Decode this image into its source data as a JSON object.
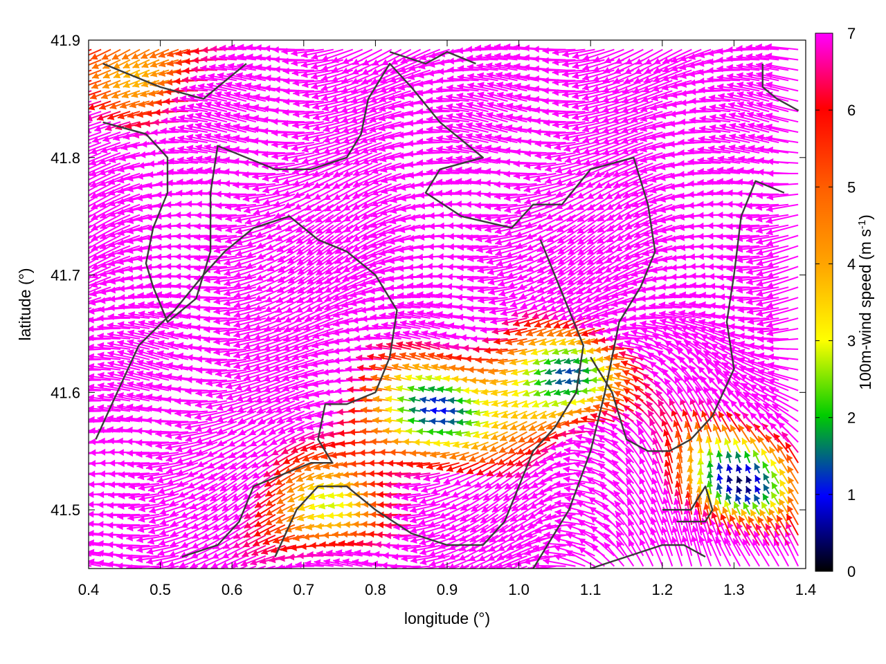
{
  "chart_data": {
    "type": "vector_field",
    "xlabel": "longitude (°)",
    "ylabel": "latitude (°)",
    "xlim": [
      0.4,
      1.4
    ],
    "ylim": [
      41.45,
      41.9
    ],
    "x_ticks": [
      0.4,
      0.5,
      0.6,
      0.7,
      0.8,
      0.9,
      1.0,
      1.1,
      1.2,
      1.3,
      1.4
    ],
    "x_tick_labels": [
      "0.4",
      "0.5",
      "0.6",
      "0.7",
      "0.8",
      "0.9",
      "1.0",
      "1.1",
      "1.2",
      "1.3",
      "1.4"
    ],
    "y_ticks": [
      41.5,
      41.6,
      41.7,
      41.8,
      41.9
    ],
    "y_tick_labels": [
      "41.5",
      "41.6",
      "41.7",
      "41.8",
      "41.9"
    ],
    "colorbar": {
      "label_main": "100m-wind speed (m s",
      "label_sup": "-1",
      "label_end": ")",
      "min": 0,
      "max": 7,
      "ticks": [
        0,
        1,
        2,
        3,
        4,
        5,
        6,
        7
      ],
      "tick_labels": [
        "0",
        "1",
        "2",
        "3",
        "4",
        "5",
        "6",
        "7"
      ],
      "colors": [
        "#000000",
        "#0000ff",
        "#00cc00",
        "#ffff00",
        "#ffa500",
        "#ff0000",
        "#ff00ff"
      ]
    },
    "grid": false,
    "legend": "none",
    "wind_field": {
      "general_direction": "westward (east-to-west flow), veering to northward in the south-east",
      "max_speed": 7,
      "low_speed_regions": [
        {
          "lon": 0.88,
          "lat": 41.58,
          "speed": 1.5
        },
        {
          "lon": 1.06,
          "lat": 41.61,
          "speed": 1.0
        },
        {
          "lon": 1.31,
          "lat": 41.52,
          "speed": 1.2
        },
        {
          "lon": 0.5,
          "lat": 41.88,
          "speed": 3.5
        },
        {
          "lon": 0.73,
          "lat": 41.5,
          "speed": 3.0
        }
      ]
    },
    "contours": [
      [
        [
          0.42,
          41.88
        ],
        [
          0.5,
          41.86
        ],
        [
          0.56,
          41.85
        ],
        [
          0.6,
          41.87
        ],
        [
          0.62,
          41.88
        ]
      ],
      [
        [
          0.42,
          41.83
        ],
        [
          0.48,
          41.82
        ],
        [
          0.51,
          41.8
        ],
        [
          0.51,
          41.77
        ],
        [
          0.49,
          41.74
        ],
        [
          0.48,
          41.71
        ],
        [
          0.49,
          41.69
        ],
        [
          0.51,
          41.66
        ],
        [
          0.55,
          41.68
        ],
        [
          0.57,
          41.72
        ],
        [
          0.57,
          41.77
        ],
        [
          0.58,
          41.81
        ],
        [
          0.62,
          41.8
        ],
        [
          0.66,
          41.79
        ],
        [
          0.71,
          41.79
        ],
        [
          0.76,
          41.8
        ],
        [
          0.78,
          41.82
        ],
        [
          0.79,
          41.85
        ],
        [
          0.82,
          41.88
        ],
        [
          0.85,
          41.86
        ],
        [
          0.89,
          41.83
        ],
        [
          0.93,
          41.81
        ],
        [
          0.95,
          41.8
        ],
        [
          0.89,
          41.79
        ],
        [
          0.87,
          41.77
        ],
        [
          0.92,
          41.75
        ],
        [
          0.99,
          41.74
        ],
        [
          1.02,
          41.76
        ],
        [
          1.06,
          41.76
        ],
        [
          1.1,
          41.79
        ],
        [
          1.16,
          41.8
        ],
        [
          1.18,
          41.76
        ],
        [
          1.19,
          41.72
        ],
        [
          1.17,
          41.69
        ],
        [
          1.14,
          41.66
        ],
        [
          1.12,
          41.6
        ],
        [
          1.1,
          41.55
        ],
        [
          1.07,
          41.5
        ],
        [
          1.04,
          41.47
        ],
        [
          1.02,
          41.45
        ]
      ],
      [
        [
          0.41,
          41.56
        ],
        [
          0.44,
          41.6
        ],
        [
          0.47,
          41.64
        ],
        [
          0.52,
          41.67
        ],
        [
          0.56,
          41.7
        ],
        [
          0.59,
          41.72
        ],
        [
          0.63,
          41.74
        ],
        [
          0.68,
          41.75
        ],
        [
          0.72,
          41.73
        ],
        [
          0.76,
          41.72
        ],
        [
          0.8,
          41.7
        ],
        [
          0.83,
          41.67
        ],
        [
          0.82,
          41.63
        ],
        [
          0.8,
          41.6
        ],
        [
          0.76,
          41.59
        ],
        [
          0.73,
          41.59
        ],
        [
          0.72,
          41.56
        ],
        [
          0.74,
          41.54
        ],
        [
          0.71,
          41.54
        ],
        [
          0.67,
          41.53
        ],
        [
          0.63,
          41.52
        ],
        [
          0.61,
          41.49
        ],
        [
          0.58,
          41.47
        ],
        [
          0.53,
          41.46
        ]
      ],
      [
        [
          0.66,
          41.46
        ],
        [
          0.69,
          41.5
        ],
        [
          0.72,
          41.52
        ],
        [
          0.76,
          41.52
        ],
        [
          0.8,
          41.5
        ],
        [
          0.85,
          41.48
        ],
        [
          0.9,
          41.47
        ],
        [
          0.95,
          41.47
        ],
        [
          0.98,
          41.49
        ],
        [
          1.0,
          41.52
        ],
        [
          1.02,
          41.55
        ],
        [
          1.05,
          41.57
        ],
        [
          1.07,
          41.59
        ],
        [
          1.08,
          41.6
        ],
        [
          1.09,
          41.64
        ],
        [
          1.07,
          41.67
        ],
        [
          1.05,
          41.7
        ],
        [
          1.03,
          41.73
        ]
      ],
      [
        [
          1.37,
          41.77
        ],
        [
          1.33,
          41.78
        ],
        [
          1.31,
          41.75
        ],
        [
          1.3,
          41.7
        ],
        [
          1.29,
          41.66
        ],
        [
          1.3,
          41.62
        ],
        [
          1.27,
          41.58
        ],
        [
          1.24,
          41.56
        ],
        [
          1.21,
          41.55
        ],
        [
          1.18,
          41.55
        ],
        [
          1.15,
          41.56
        ],
        [
          1.13,
          41.6
        ],
        [
          1.1,
          41.63
        ]
      ],
      [
        [
          1.2,
          41.5
        ],
        [
          1.24,
          41.5
        ],
        [
          1.26,
          41.52
        ],
        [
          1.27,
          41.5
        ],
        [
          1.26,
          41.49
        ],
        [
          1.22,
          41.49
        ]
      ],
      [
        [
          1.1,
          41.45
        ],
        [
          1.15,
          41.46
        ],
        [
          1.2,
          41.47
        ],
        [
          1.23,
          41.47
        ],
        [
          1.26,
          41.46
        ]
      ],
      [
        [
          1.34,
          41.88
        ],
        [
          1.34,
          41.86
        ],
        [
          1.36,
          41.85
        ],
        [
          1.39,
          41.84
        ]
      ],
      [
        [
          0.82,
          41.89
        ],
        [
          0.87,
          41.88
        ],
        [
          0.9,
          41.89
        ],
        [
          0.94,
          41.88
        ]
      ]
    ]
  }
}
